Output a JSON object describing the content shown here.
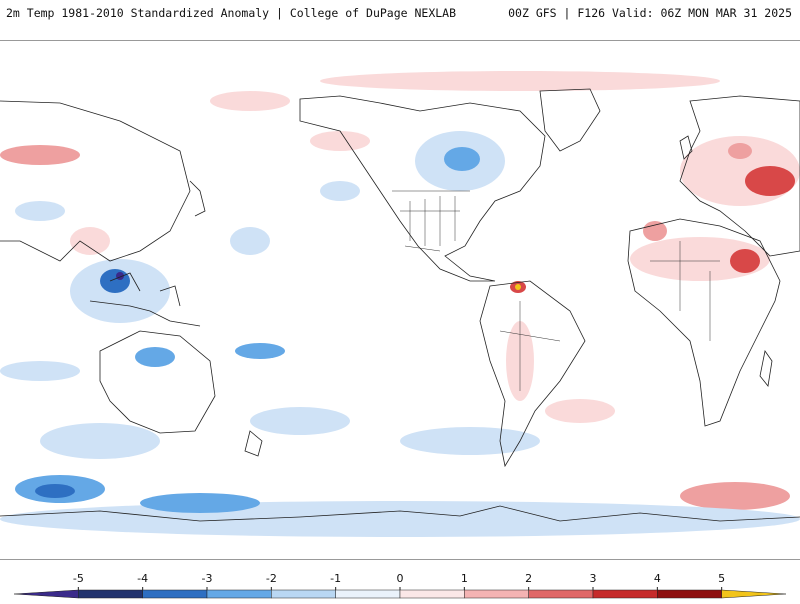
{
  "header": {
    "title_left": "2m Temp 1981-2010 Standardized Anomaly | College of DuPage NEXLAB",
    "title_right": "00Z GFS | F126 Valid: 06Z MON MAR 31 2025"
  },
  "colorbar": {
    "ticks": [
      "-5",
      "-4",
      "-3",
      "-2",
      "-1",
      "0",
      "1",
      "2",
      "3",
      "4",
      "5"
    ],
    "bins": [
      {
        "color": "#3a2a8a"
      },
      {
        "color": "#22336e"
      },
      {
        "color": "#2e6fc2"
      },
      {
        "color": "#64a8e6"
      },
      {
        "color": "#b9d7f3"
      },
      {
        "color": "#eaf2fb"
      },
      {
        "color": "#fbe7e7"
      },
      {
        "color": "#f4b3b3"
      },
      {
        "color": "#e06767"
      },
      {
        "color": "#c62a2a"
      },
      {
        "color": "#8e0f0f"
      },
      {
        "color": "#f2c41a"
      }
    ]
  },
  "colors": {
    "cold_extreme": "#3a2a8a",
    "cold_strong": "#2e6fc2",
    "cold_moderate": "#64a8e6",
    "cold_weak": "#cfe2f6",
    "warm_weak": "#fadada",
    "warm_moderate": "#eea0a0",
    "warm_strong": "#d84848",
    "warm_extreme": "#f2c41a",
    "coastline": "#222222"
  }
}
